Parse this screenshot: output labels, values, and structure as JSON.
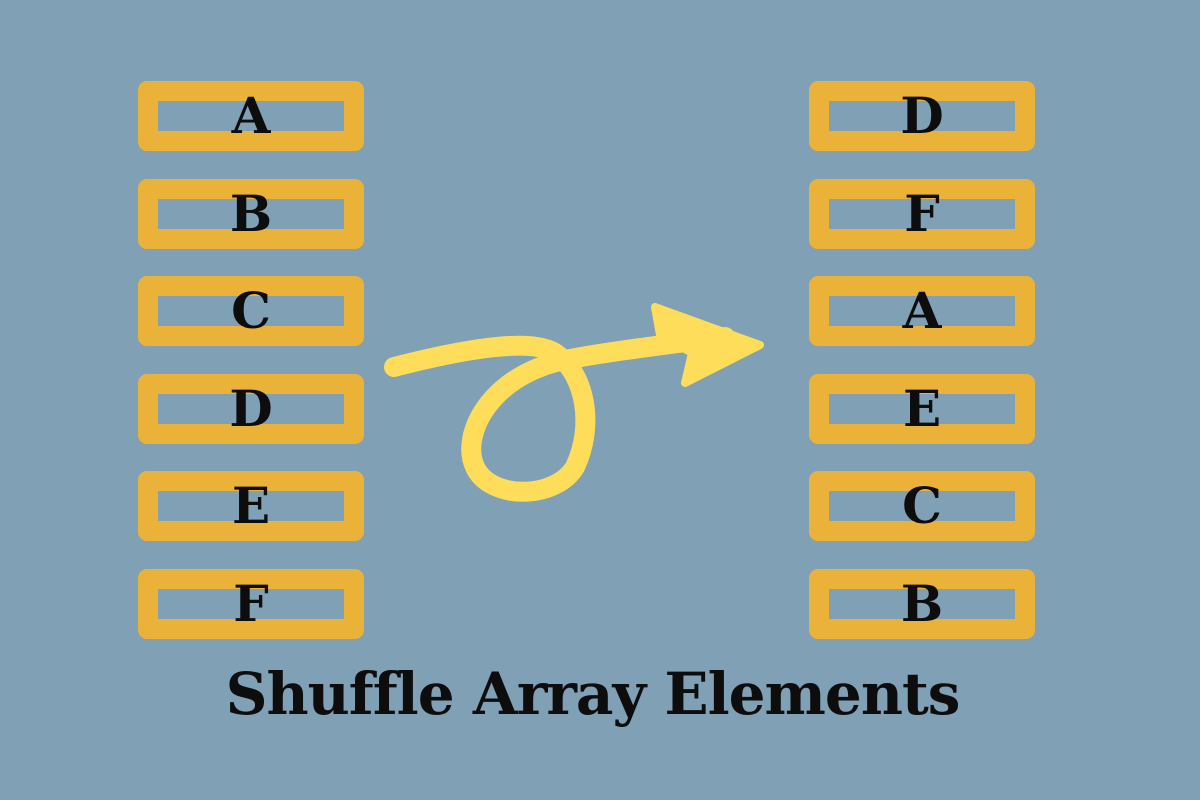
{
  "colors": {
    "background": "#7fa0b5",
    "cell_border": "#ebb23a",
    "arrow": "#fedd5a",
    "text": "#0d0d0d"
  },
  "left_array": [
    "A",
    "B",
    "C",
    "D",
    "E",
    "F"
  ],
  "right_array": [
    "D",
    "F",
    "A",
    "E",
    "C",
    "B"
  ],
  "arrow_icon": "curly-arrow-icon",
  "caption": "Shuffle Array Elements"
}
